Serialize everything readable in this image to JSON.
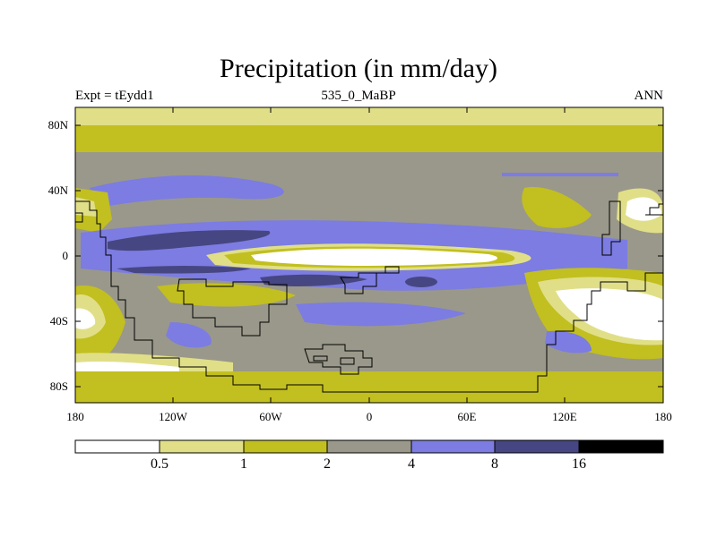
{
  "map": {
    "title": "Precipitation (in mm/day)",
    "left_label": "Expt = tEydd1",
    "center_label": "535_0_MaBP",
    "right_label": "ANN",
    "lat_ticks": [
      "80N",
      "40N",
      "0",
      "40S",
      "80S"
    ],
    "lon_ticks": [
      "180",
      "120W",
      "60W",
      "0",
      "60E",
      "120E",
      "180"
    ]
  },
  "colorbar": {
    "levels": [
      "0.5",
      "1",
      "2",
      "4",
      "8",
      "16"
    ],
    "colors": [
      "#ffffff",
      "#e0df88",
      "#c2bf20",
      "#9a988a",
      "#7c7ce2",
      "#464682",
      "#000000"
    ]
  }
}
